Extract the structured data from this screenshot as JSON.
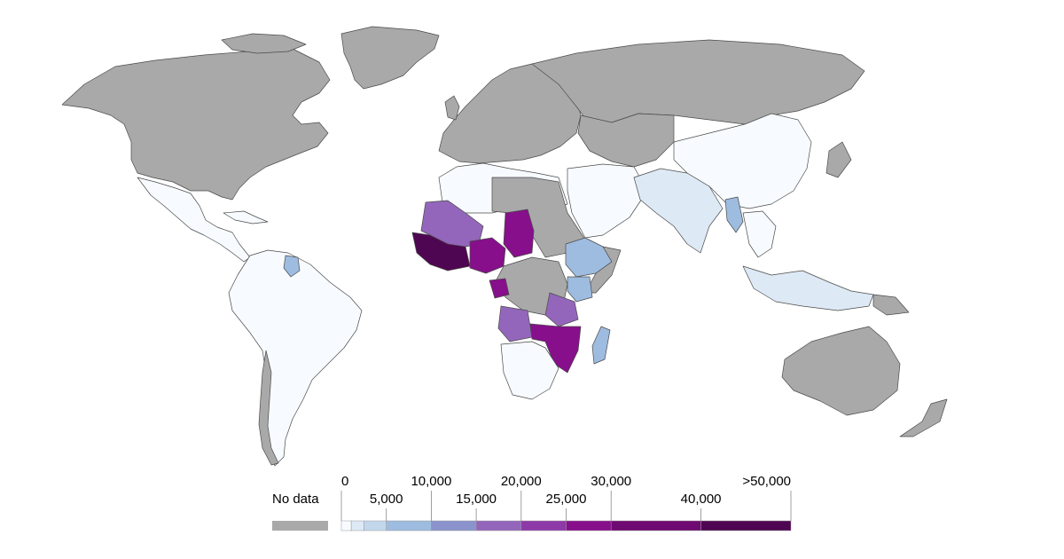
{
  "legend": {
    "no_data_label": "No data",
    "no_data_color": "#a9a9a9",
    "upper_labels": [
      "0",
      "10,000",
      "20,000",
      "30,000",
      ">50,000"
    ],
    "lower_labels": [
      "5,000",
      "15,000",
      "25,000",
      "40,000"
    ],
    "bins": [
      {
        "from": 0,
        "to": 1000,
        "color": "#f7fbff"
      },
      {
        "from": 1000,
        "to": 2500,
        "color": "#dde9f5"
      },
      {
        "from": 2500,
        "to": 5000,
        "color": "#c3d7ec"
      },
      {
        "from": 5000,
        "to": 10000,
        "color": "#9dbcdf"
      },
      {
        "from": 10000,
        "to": 15000,
        "color": "#8b93cc"
      },
      {
        "from": 15000,
        "to": 20000,
        "color": "#9366bb"
      },
      {
        "from": 20000,
        "to": 25000,
        "color": "#8d3aa8"
      },
      {
        "from": 25000,
        "to": 30000,
        "color": "#870f8b"
      },
      {
        "from": 30000,
        "to": 40000,
        "color": "#6e0a71"
      },
      {
        "from": 40000,
        "to": 50000,
        "color": "#4f0652"
      }
    ]
  },
  "regions": [
    {
      "name": "North America",
      "category": "no-data"
    },
    {
      "name": "Greenland",
      "category": "no-data"
    },
    {
      "name": "Mexico and Central America",
      "category": "0-1k"
    },
    {
      "name": "South America",
      "category": "0-1k"
    },
    {
      "name": "Guyana",
      "category": "5k-10k"
    },
    {
      "name": "Chile",
      "category": "no-data"
    },
    {
      "name": "Europe",
      "category": "no-data"
    },
    {
      "name": "Russia",
      "category": "no-data"
    },
    {
      "name": "North Africa",
      "category": "0-1k"
    },
    {
      "name": "Mali",
      "category": "15k-20k"
    },
    {
      "name": "Nigeria",
      "category": "25k-30k"
    },
    {
      "name": "Chad",
      "category": "25k-30k"
    },
    {
      "name": "West Africa coast",
      "category": "30k-50k"
    },
    {
      "name": "Ethiopia",
      "category": "5k-10k"
    },
    {
      "name": "Angola",
      "category": "15k-20k"
    },
    {
      "name": "Mozambique",
      "category": "25k-30k"
    },
    {
      "name": "Madagascar",
      "category": "5k-10k"
    },
    {
      "name": "Southern Africa",
      "category": "0-1k"
    },
    {
      "name": "Middle East",
      "category": "0-1k"
    },
    {
      "name": "India",
      "category": "1k-2.5k"
    },
    {
      "name": "China",
      "category": "0-1k"
    },
    {
      "name": "Myanmar",
      "category": "5k-10k"
    },
    {
      "name": "Indonesia",
      "category": "1k-2.5k"
    },
    {
      "name": "Australia",
      "category": "no-data"
    }
  ]
}
